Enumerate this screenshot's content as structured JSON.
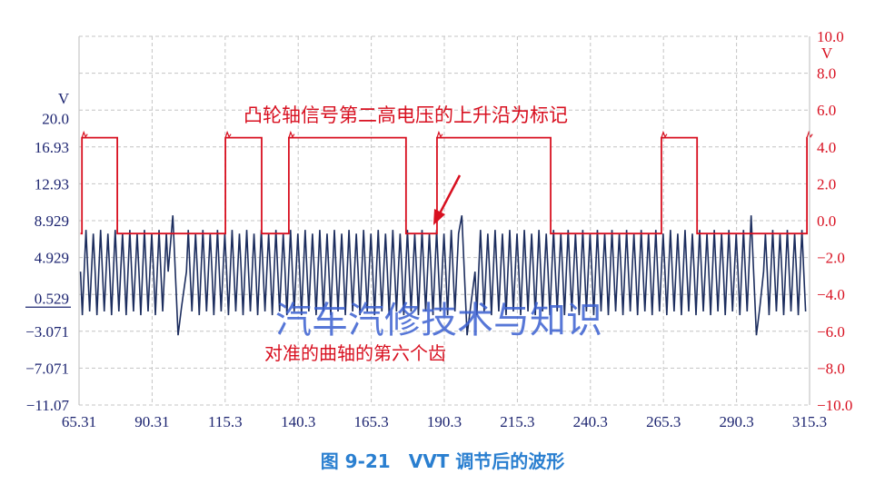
{
  "chart_data": {
    "type": "line",
    "title": "",
    "caption": "图 9-21　VVT 调节后的波形",
    "watermark": "汽车汽修技术与知识",
    "grid": true,
    "x_ticks": [
      "65.31",
      "90.31",
      "115.3",
      "140.3",
      "165.3",
      "190.3",
      "215.3",
      "240.3",
      "265.3",
      "290.3",
      "315.3"
    ],
    "xlim": [
      65.31,
      315.3
    ],
    "left_axis": {
      "unit": "V",
      "ticks": [
        "20.0",
        "16.93",
        "12.93",
        "8.929",
        "4.929",
        "0.529",
        "-3.071",
        "-7.071",
        "-11.07"
      ],
      "tick_values": [
        20.0,
        16.93,
        12.93,
        8.929,
        4.929,
        0.529,
        -3.071,
        -7.071,
        -11.07
      ],
      "color": "#1c2470"
    },
    "right_axis": {
      "unit": "V",
      "ticks": [
        "10.0",
        "8.0",
        "6.0",
        "4.0",
        "2.0",
        "0.0",
        "-2.0",
        "-4.0",
        "-6.0",
        "-8.0",
        "-10.0"
      ],
      "ylim": [
        -10,
        10
      ],
      "color": "#d81020"
    },
    "series": [
      {
        "axis": "right",
        "color": "#d81020",
        "kind": "square",
        "high": 4.5,
        "low": -0.7,
        "rising_edges": [
          66.3,
          115.4,
          137.1,
          187.8,
          264.6,
          314.4
        ],
        "falling_edges": [
          78.4,
          127.8,
          177.2,
          226.7,
          276.8
        ]
      },
      {
        "axis": "left",
        "color": "#1c2d5e",
        "kind": "crank-teeth",
        "high": 8.2,
        "low": -1.4,
        "tooth_period": 2.5,
        "missing_tooth_at": [
          98.9,
          197.8,
          296.8
        ],
        "spike_high": 9.5,
        "spike_low": -3.5
      }
    ],
    "annotations": [
      {
        "text": "凸轮轴信号第二高电压的上升沿为标记",
        "color": "#d81020"
      },
      {
        "text": "对准的曲轴的第六个齿",
        "color": "#d81020"
      }
    ]
  }
}
